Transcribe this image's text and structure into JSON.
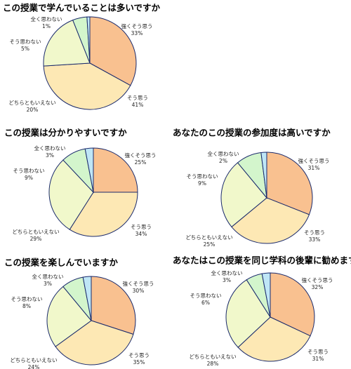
{
  "chart_data": [
    {
      "type": "pie",
      "title": "この授業で学んでいることは多いですか",
      "categories": [
        "強くそう思う",
        "そう思う",
        "どちらともいえない",
        "そう思わない",
        "全く思わない"
      ],
      "values": [
        33,
        41,
        20,
        5,
        1
      ],
      "value_labels": [
        "33%",
        "41%",
        "20%",
        "5%",
        "1%"
      ],
      "colors": [
        "#f9c190",
        "#fde8b4",
        "#f1f8cb",
        "#d3f5cc",
        "#bfe6f6"
      ]
    },
    {
      "type": "pie",
      "title": "この授業は分かりやすいですか",
      "categories": [
        "強くそう思う",
        "そう思う",
        "どちらともいえない",
        "そう思わない",
        "全く思わない"
      ],
      "values": [
        25,
        34,
        29,
        9,
        3
      ],
      "value_labels": [
        "25%",
        "34%",
        "29%",
        "9%",
        "3%"
      ],
      "colors": [
        "#f9c190",
        "#fde8b4",
        "#f1f8cb",
        "#d3f5cc",
        "#bfe6f6"
      ]
    },
    {
      "type": "pie",
      "title": "あなたのこの授業の参加度は高いですか",
      "categories": [
        "強くそう思う",
        "そう思う",
        "どちらともいえない",
        "そう思わない",
        "全く思わない"
      ],
      "values": [
        31,
        33,
        25,
        9,
        2
      ],
      "value_labels": [
        "31%",
        "33%",
        "25%",
        "9%",
        "2%"
      ],
      "colors": [
        "#f9c190",
        "#fde8b4",
        "#f1f8cb",
        "#d3f5cc",
        "#bfe6f6"
      ]
    },
    {
      "type": "pie",
      "title": "この授業を楽しんでいますか",
      "categories": [
        "強くそう思う",
        "そう思う",
        "どちらともいえない",
        "そう思わない",
        "全く思わない"
      ],
      "values": [
        30,
        35,
        24,
        8,
        3
      ],
      "value_labels": [
        "30%",
        "35%",
        "24%",
        "8%",
        "3%"
      ],
      "colors": [
        "#f9c190",
        "#fde8b4",
        "#f1f8cb",
        "#d3f5cc",
        "#bfe6f6"
      ]
    },
    {
      "type": "pie",
      "title": "あなたはこの授業を同じ学科の後輩に勧めますか",
      "categories": [
        "強くそう思う",
        "そう思う",
        "どちらともいえない",
        "そう思わない",
        "全く思わない"
      ],
      "values": [
        32,
        31,
        28,
        6,
        3
      ],
      "value_labels": [
        "32%",
        "31%",
        "28%",
        "6%",
        "3%"
      ],
      "colors": [
        "#f9c190",
        "#fde8b4",
        "#f1f8cb",
        "#d3f5cc",
        "#bfe6f6"
      ]
    }
  ]
}
